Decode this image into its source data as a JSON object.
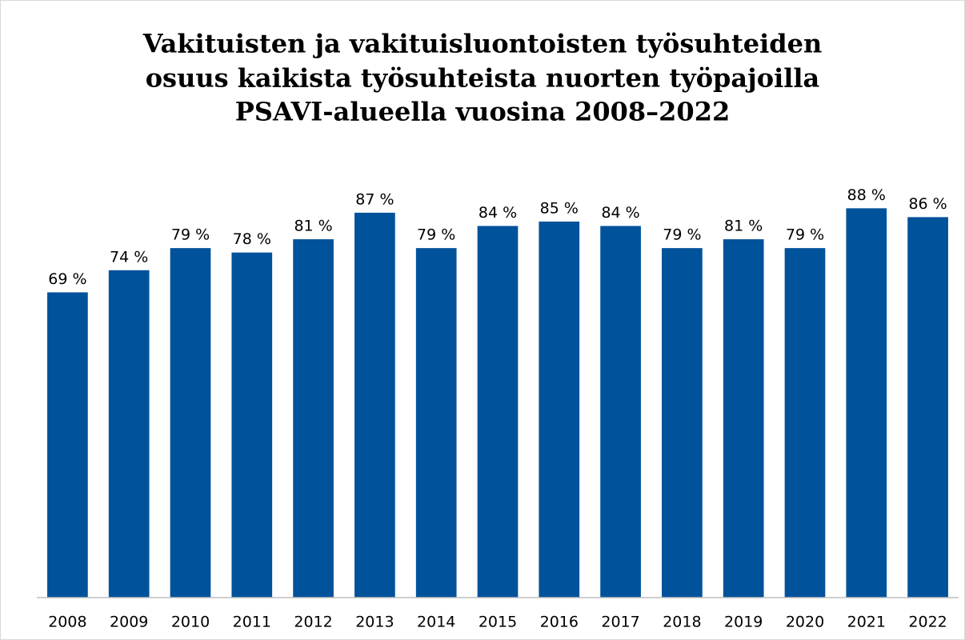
{
  "chart_data": {
    "type": "bar",
    "title": [
      "Vakituisten ja vakituisluontoisten työsuhteiden",
      "osuus kaikista työsuhteista nuorten työpajoilla",
      "PSAVI-alueella vuosina 2008–2022"
    ],
    "categories": [
      "2008",
      "2009",
      "2010",
      "2011",
      "2012",
      "2013",
      "2014",
      "2015",
      "2016",
      "2017",
      "2018",
      "2019",
      "2020",
      "2021",
      "2022"
    ],
    "values": [
      69,
      74,
      79,
      78,
      81,
      87,
      79,
      84,
      85,
      84,
      79,
      81,
      79,
      88,
      86
    ],
    "value_labels": [
      "69 %",
      "74 %",
      "79 %",
      "78 %",
      "81 %",
      "87 %",
      "79 %",
      "84 %",
      "85 %",
      "84 %",
      "79 %",
      "81 %",
      "79 %",
      "88 %",
      "86 %"
    ],
    "color": "#00529b",
    "ylim": [
      0,
      100
    ]
  }
}
